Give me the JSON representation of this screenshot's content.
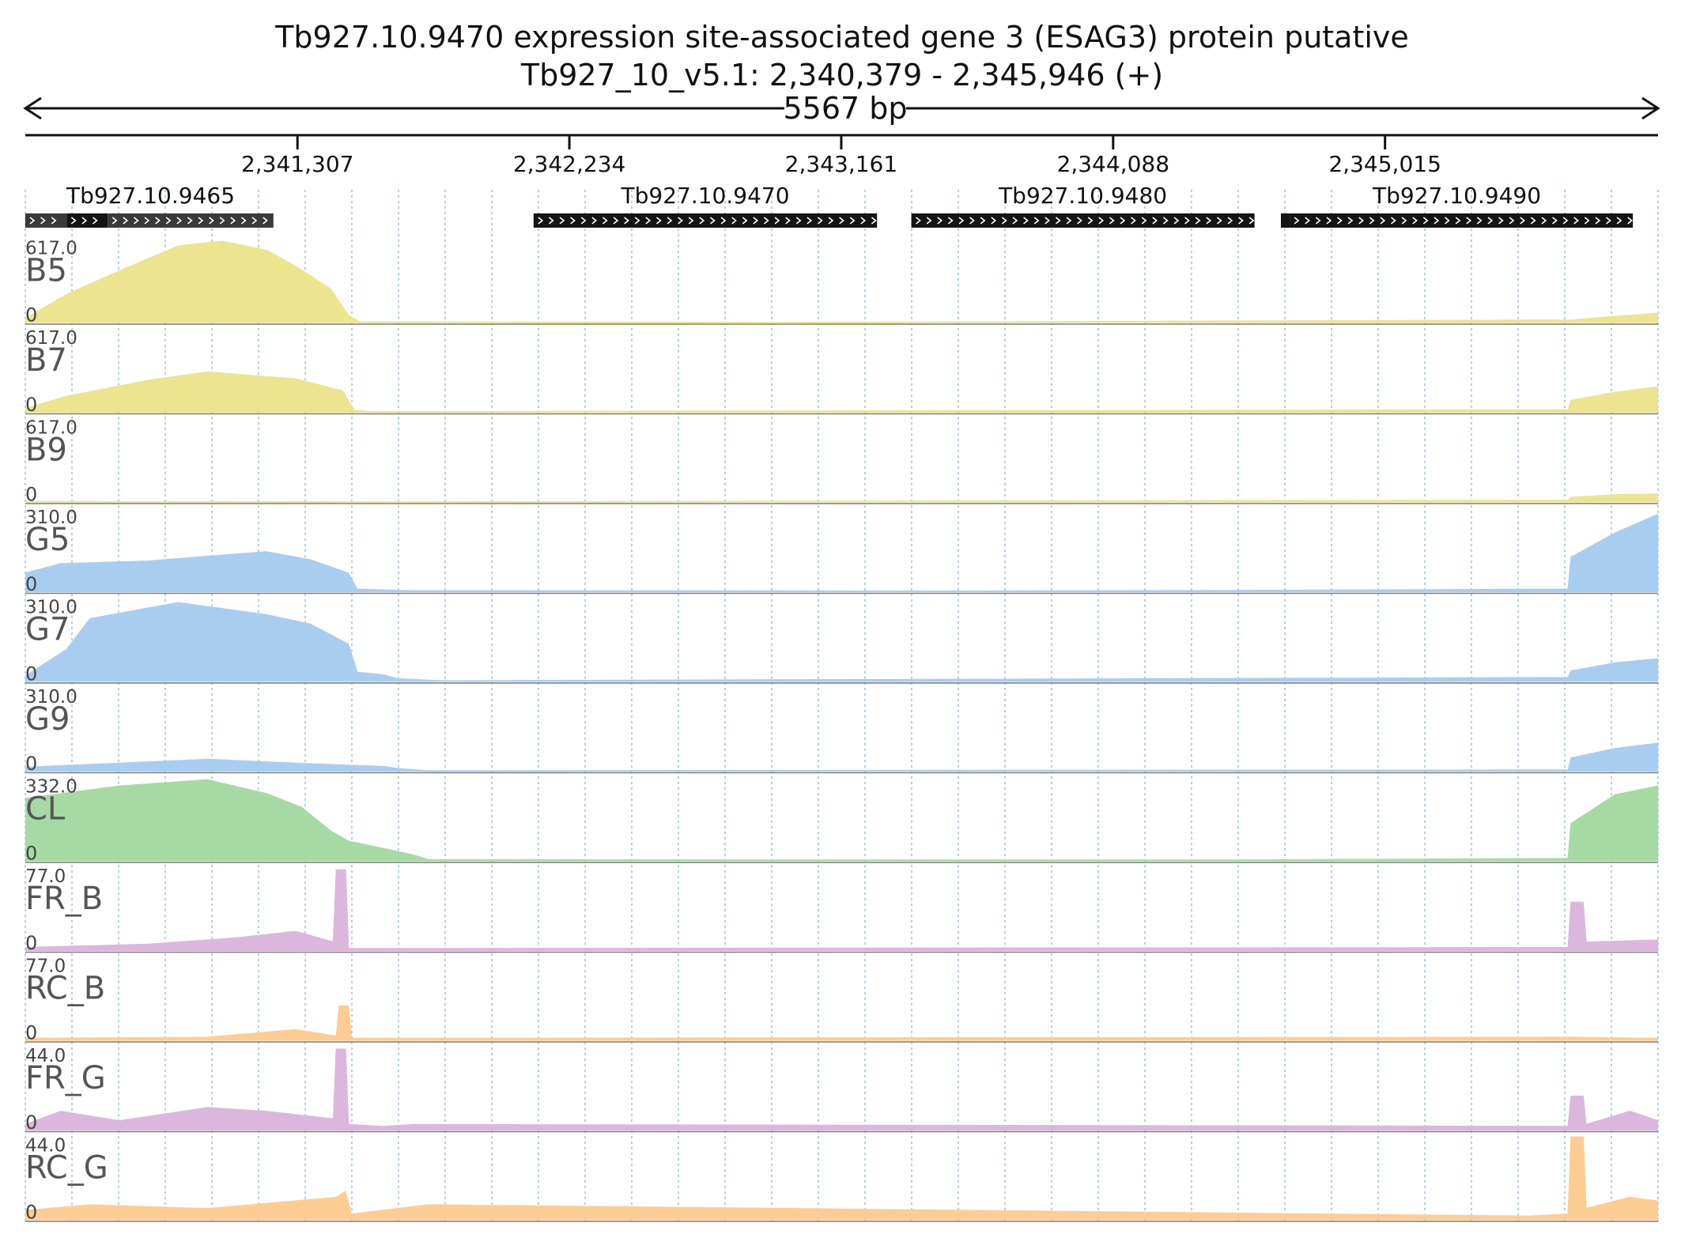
{
  "chart_data": {
    "type": "area",
    "title": "Tb927.10.9470  expression site-associated gene 3 (ESAG3) protein  putative",
    "subtitle": "Tb927_10_v5.1: 2,340,379 - 2,345,946 (+)",
    "span_label": "5567 bp",
    "xlim": [
      2340379,
      2345946
    ],
    "x_ticks": [
      {
        "value": 2341307,
        "label": "2,341,307"
      },
      {
        "value": 2342234,
        "label": "2,342,234"
      },
      {
        "value": 2343161,
        "label": "2,343,161"
      },
      {
        "value": 2344088,
        "label": "2,344,088"
      },
      {
        "value": 2345015,
        "label": "2,345,015"
      }
    ],
    "genes": [
      {
        "name": "Tb927.10.9465",
        "segments": [
          [
            2340379,
            2340520
          ],
          [
            2340520,
            2340660
          ],
          [
            2340660,
            2341225
          ]
        ],
        "strand": "+"
      },
      {
        "name": "Tb927.10.9470",
        "segments": [
          [
            2342112,
            2343283
          ]
        ],
        "strand": "+"
      },
      {
        "name": "Tb927.10.9480",
        "segments": [
          [
            2343400,
            2344570
          ]
        ],
        "strand": "+"
      },
      {
        "name": "Tb927.10.9490",
        "segments": [
          [
            2344660,
            2344690
          ],
          [
            2344690,
            2345860
          ]
        ],
        "strand": "+"
      }
    ],
    "tracks": [
      {
        "name": "B5",
        "max_label": "617.0",
        "zero_label": "0",
        "ymax": 617,
        "color": "#ece48f",
        "coverage": [
          [
            2340379,
            30
          ],
          [
            2340520,
            210
          ],
          [
            2340700,
            385
          ],
          [
            2340900,
            570
          ],
          [
            2341050,
            605
          ],
          [
            2341200,
            540
          ],
          [
            2341300,
            420
          ],
          [
            2341420,
            250
          ],
          [
            2341480,
            55
          ],
          [
            2341520,
            5
          ],
          [
            2343000,
            2
          ],
          [
            2345650,
            20
          ],
          [
            2345760,
            40
          ],
          [
            2345946,
            70
          ]
        ]
      },
      {
        "name": "B7",
        "max_label": "617.0",
        "zero_label": "0",
        "ymax": 617,
        "color": "#ece48f",
        "coverage": [
          [
            2340379,
            28
          ],
          [
            2340520,
            120
          ],
          [
            2340800,
            240
          ],
          [
            2341000,
            300
          ],
          [
            2341300,
            250
          ],
          [
            2341460,
            160
          ],
          [
            2341500,
            15
          ],
          [
            2341560,
            5
          ],
          [
            2345640,
            20
          ],
          [
            2345650,
            90
          ],
          [
            2345800,
            150
          ],
          [
            2345946,
            190
          ]
        ]
      },
      {
        "name": "B9",
        "max_label": "617.0",
        "zero_label": "0",
        "ymax": 617,
        "color": "#ece48f",
        "coverage": [
          [
            2340379,
            4
          ],
          [
            2341300,
            3
          ],
          [
            2341600,
            1
          ],
          [
            2345640,
            15
          ],
          [
            2345650,
            35
          ],
          [
            2345800,
            55
          ],
          [
            2345946,
            60
          ]
        ]
      },
      {
        "name": "G5",
        "max_label": "310.0",
        "zero_label": "0",
        "ymax": 310,
        "color": "#a9cdef",
        "coverage": [
          [
            2340379,
            70
          ],
          [
            2340500,
            105
          ],
          [
            2340800,
            115
          ],
          [
            2341200,
            150
          ],
          [
            2341350,
            120
          ],
          [
            2341480,
            70
          ],
          [
            2341510,
            10
          ],
          [
            2341700,
            4
          ],
          [
            2343600,
            3
          ],
          [
            2344500,
            5
          ],
          [
            2345640,
            10
          ],
          [
            2345650,
            130
          ],
          [
            2345800,
            220
          ],
          [
            2345946,
            290
          ]
        ]
      },
      {
        "name": "G7",
        "max_label": "310.0",
        "zero_label": "0",
        "ymax": 310,
        "color": "#a9cdef",
        "coverage": [
          [
            2340379,
            20
          ],
          [
            2340520,
            120
          ],
          [
            2340600,
            235
          ],
          [
            2340900,
            295
          ],
          [
            2341200,
            250
          ],
          [
            2341350,
            215
          ],
          [
            2341480,
            140
          ],
          [
            2341510,
            35
          ],
          [
            2341600,
            25
          ],
          [
            2341650,
            10
          ],
          [
            2341800,
            3
          ],
          [
            2345640,
            15
          ],
          [
            2345650,
            40
          ],
          [
            2345800,
            70
          ],
          [
            2345946,
            85
          ]
        ]
      },
      {
        "name": "G9",
        "max_label": "310.0",
        "zero_label": "0",
        "ymax": 310,
        "color": "#a9cdef",
        "coverage": [
          [
            2340379,
            15
          ],
          [
            2340800,
            35
          ],
          [
            2341000,
            45
          ],
          [
            2341300,
            30
          ],
          [
            2341600,
            18
          ],
          [
            2341650,
            10
          ],
          [
            2341750,
            2
          ],
          [
            2345640,
            5
          ],
          [
            2345650,
            50
          ],
          [
            2345800,
            85
          ],
          [
            2345946,
            105
          ]
        ]
      },
      {
        "name": "CL",
        "max_label": "332.0",
        "zero_label": "0",
        "ymax": 332,
        "color": "#a7d9a4",
        "coverage": [
          [
            2340379,
            250
          ],
          [
            2340700,
            300
          ],
          [
            2341000,
            325
          ],
          [
            2341200,
            270
          ],
          [
            2341320,
            215
          ],
          [
            2341420,
            120
          ],
          [
            2341480,
            80
          ],
          [
            2341600,
            50
          ],
          [
            2341700,
            25
          ],
          [
            2341750,
            6
          ],
          [
            2342800,
            4
          ],
          [
            2344500,
            4
          ],
          [
            2345640,
            10
          ],
          [
            2345650,
            150
          ],
          [
            2345800,
            265
          ],
          [
            2345946,
            300
          ]
        ]
      },
      {
        "name": "FR_B",
        "max_label": "77.0",
        "zero_label": "0",
        "ymax": 77,
        "color": "#dcb7dd",
        "coverage": [
          [
            2340379,
            3
          ],
          [
            2340800,
            6
          ],
          [
            2341100,
            12
          ],
          [
            2341300,
            18
          ],
          [
            2341430,
            8
          ],
          [
            2341440,
            75
          ],
          [
            2341470,
            75
          ],
          [
            2341480,
            2
          ],
          [
            2345640,
            3
          ],
          [
            2345650,
            45
          ],
          [
            2345690,
            45
          ],
          [
            2345700,
            8
          ],
          [
            2345946,
            10
          ]
        ]
      },
      {
        "name": "RC_B",
        "max_label": "77.0",
        "zero_label": "0",
        "ymax": 77,
        "color": "#fccd93",
        "coverage": [
          [
            2340379,
            2
          ],
          [
            2341000,
            3
          ],
          [
            2341300,
            10
          ],
          [
            2341440,
            4
          ],
          [
            2341450,
            32
          ],
          [
            2341480,
            32
          ],
          [
            2341490,
            2
          ],
          [
            2345660,
            3
          ],
          [
            2345946,
            2
          ]
        ]
      },
      {
        "name": "FR_G",
        "max_label": "44.0",
        "zero_label": "0",
        "ymax": 44,
        "color": "#dcb7dd",
        "coverage": [
          [
            2340379,
            3
          ],
          [
            2340500,
            10
          ],
          [
            2340700,
            5
          ],
          [
            2341000,
            12
          ],
          [
            2341200,
            10
          ],
          [
            2341430,
            6
          ],
          [
            2341440,
            43
          ],
          [
            2341470,
            43
          ],
          [
            2341480,
            3
          ],
          [
            2341600,
            2
          ],
          [
            2341700,
            3
          ],
          [
            2345640,
            2
          ],
          [
            2345650,
            18
          ],
          [
            2345690,
            18
          ],
          [
            2345700,
            3
          ],
          [
            2345850,
            10
          ],
          [
            2345946,
            5
          ]
        ]
      },
      {
        "name": "RC_G",
        "max_label": "44.0",
        "zero_label": "0",
        "ymax": 44,
        "color": "#fccd93",
        "coverage": [
          [
            2340379,
            5
          ],
          [
            2340600,
            8
          ],
          [
            2341000,
            6
          ],
          [
            2341440,
            12
          ],
          [
            2341470,
            15
          ],
          [
            2341490,
            3
          ],
          [
            2341700,
            7
          ],
          [
            2341750,
            8
          ],
          [
            2345500,
            2
          ],
          [
            2345640,
            3
          ],
          [
            2345650,
            44
          ],
          [
            2345690,
            44
          ],
          [
            2345700,
            6
          ],
          [
            2345850,
            12
          ],
          [
            2345946,
            10
          ]
        ]
      }
    ]
  }
}
